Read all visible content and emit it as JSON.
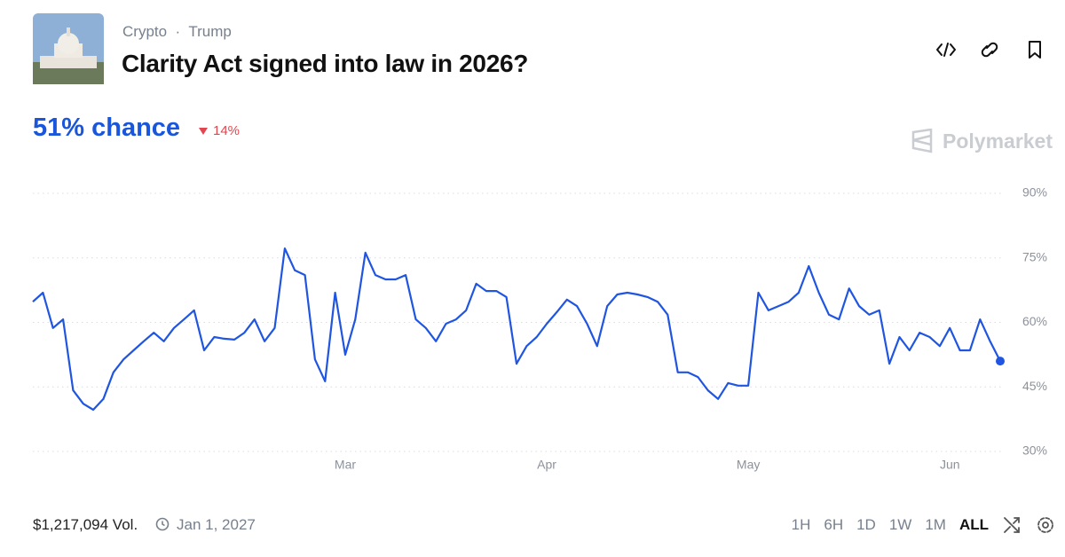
{
  "header": {
    "tags": [
      "Crypto",
      "Trump"
    ],
    "title": "Clarity Act signed into law in 2026?",
    "headline": "51% chance",
    "change": "14%",
    "brand": "Polymarket"
  },
  "footer": {
    "volume": "$1,217,094 Vol.",
    "end_date": "Jan 1, 2027",
    "ranges": [
      "1H",
      "6H",
      "1D",
      "1W",
      "1M",
      "ALL"
    ]
  },
  "chart_data": {
    "type": "line",
    "color": "#1f55e0",
    "grid": true,
    "ylim": [
      30,
      90
    ],
    "yticks": [
      {
        "value": 30,
        "label": "30%"
      },
      {
        "value": 45,
        "label": "45%"
      },
      {
        "value": 60,
        "label": "60%"
      },
      {
        "value": 75,
        "label": "75%"
      },
      {
        "value": 90,
        "label": "90%"
      }
    ],
    "categories": [
      null,
      null,
      null,
      null,
      null,
      null,
      null,
      null,
      null,
      null,
      null,
      null,
      null,
      null,
      null,
      null,
      null,
      null,
      null,
      null,
      null,
      null,
      null,
      null,
      null,
      null,
      null,
      null,
      null,
      null,
      null,
      "Mar",
      null,
      null,
      null,
      null,
      null,
      null,
      null,
      null,
      null,
      null,
      null,
      null,
      null,
      null,
      null,
      null,
      null,
      null,
      null,
      "Apr",
      null,
      null,
      null,
      null,
      null,
      null,
      null,
      null,
      null,
      null,
      null,
      null,
      null,
      null,
      null,
      null,
      null,
      null,
      null,
      "May",
      null,
      null,
      null,
      null,
      null,
      null,
      null,
      null,
      null,
      null,
      null,
      null,
      null,
      null,
      null,
      null,
      null,
      null,
      null,
      "Jun",
      null,
      null,
      null,
      null,
      null
    ],
    "values": [
      64.8,
      66.9,
      58.7,
      60.7,
      44.2,
      41.1,
      39.7,
      42.2,
      48.4,
      51.4,
      53.5,
      55.6,
      57.6,
      55.6,
      58.7,
      60.7,
      62.8,
      53.5,
      56.6,
      56.2,
      56.0,
      57.6,
      60.7,
      55.6,
      58.7,
      77.2,
      72.1,
      71.0,
      51.4,
      46.3,
      66.9,
      52.5,
      60.7,
      76.2,
      71.0,
      70.0,
      70.0,
      71.0,
      60.7,
      58.7,
      55.6,
      59.7,
      60.7,
      62.8,
      69.0,
      67.3,
      67.3,
      65.9,
      50.4,
      54.5,
      56.6,
      59.7,
      62.4,
      65.3,
      63.8,
      59.7,
      54.5,
      63.8,
      66.5,
      66.9,
      66.5,
      65.9,
      64.8,
      61.8,
      48.4,
      48.4,
      47.3,
      44.2,
      42.2,
      45.9,
      45.3,
      45.3,
      66.9,
      62.8,
      63.8,
      64.8,
      66.9,
      73.1,
      66.9,
      61.8,
      60.7,
      67.9,
      63.8,
      61.8,
      62.8,
      50.4,
      56.6,
      53.5,
      57.6,
      56.6,
      54.5,
      58.7,
      53.5,
      53.5,
      60.7,
      55.6,
      51
    ]
  }
}
